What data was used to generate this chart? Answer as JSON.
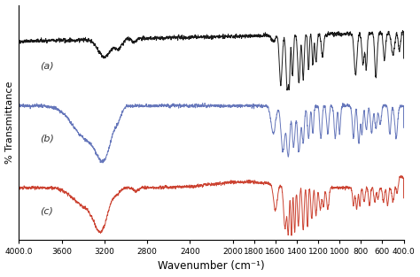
{
  "xlabel": "Wavenumber (cm⁻¹)",
  "ylabel": "% Transmittance",
  "xlim": [
    4000,
    400
  ],
  "xticks": [
    4000,
    3600,
    3200,
    2800,
    2400,
    2000,
    1800,
    1600,
    1400,
    1200,
    1000,
    800,
    600,
    400
  ],
  "xtick_labels": [
    "4000.0",
    "3600",
    "3200",
    "2800",
    "2400",
    "2000",
    "1800",
    "1600",
    "1400",
    "1200",
    "1000",
    "800",
    "600",
    "400.0"
  ],
  "colors": [
    "#1a1a1a",
    "#6677bb",
    "#cc4433"
  ],
  "labels": [
    "(a)",
    "(b)",
    "(c)"
  ],
  "background": "#ffffff",
  "figsize": [
    4.74,
    3.13
  ],
  "dpi": 100
}
